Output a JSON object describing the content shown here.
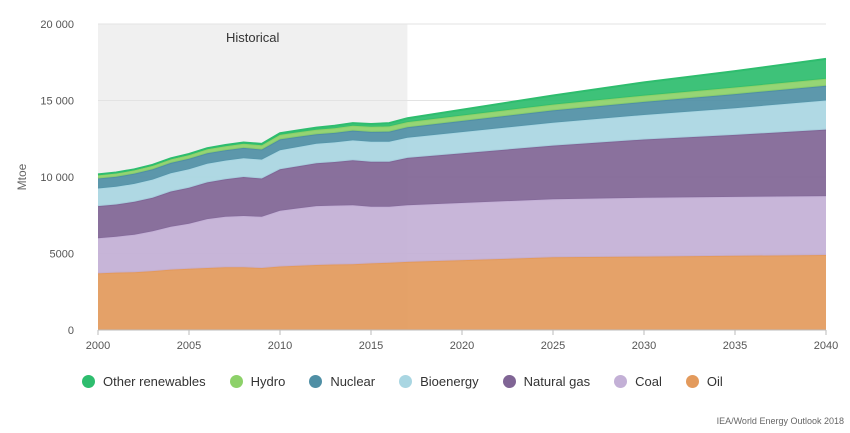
{
  "chart_data": {
    "type": "area",
    "stacked": true,
    "title": "",
    "xlabel": "",
    "ylabel": "Mtoe",
    "xlim": [
      2000,
      2040
    ],
    "ylim": [
      0,
      20000
    ],
    "yticks": [
      0,
      5000,
      10000,
      15000,
      20000
    ],
    "ytick_labels": [
      "0",
      "5000",
      "10 000",
      "15 000",
      "20 000"
    ],
    "xticks": [
      2000,
      2005,
      2010,
      2015,
      2020,
      2025,
      2030,
      2035,
      2040
    ],
    "xtick_labels": [
      "2000",
      "2005",
      "2010",
      "2015",
      "2020",
      "2025",
      "2030",
      "2035",
      "2040"
    ],
    "grid": true,
    "legend_position": "bottom",
    "historical_band": {
      "label": "Historical",
      "from": 2000,
      "to": 2017
    },
    "x": [
      2000,
      2001,
      2002,
      2003,
      2004,
      2005,
      2006,
      2007,
      2008,
      2009,
      2010,
      2011,
      2012,
      2013,
      2014,
      2015,
      2016,
      2017,
      2025,
      2030,
      2035,
      2040
    ],
    "series": [
      {
        "name": "Oil",
        "color": "#e39a5c",
        "values": [
          3700,
          3750,
          3780,
          3850,
          3950,
          4000,
          4050,
          4100,
          4100,
          4050,
          4150,
          4200,
          4250,
          4280,
          4300,
          4350,
          4400,
          4450,
          4750,
          4800,
          4850,
          4900
        ]
      },
      {
        "name": "Coal",
        "color": "#c3b0d6",
        "values": [
          2300,
          2350,
          2450,
          2600,
          2800,
          2950,
          3200,
          3300,
          3350,
          3350,
          3650,
          3750,
          3850,
          3850,
          3850,
          3700,
          3650,
          3700,
          3800,
          3850,
          3850,
          3850
        ]
      },
      {
        "name": "Natural gas",
        "color": "#806595",
        "values": [
          2100,
          2100,
          2150,
          2200,
          2300,
          2350,
          2400,
          2450,
          2550,
          2500,
          2700,
          2750,
          2800,
          2850,
          2950,
          2950,
          2950,
          3100,
          3500,
          3800,
          4050,
          4350
        ]
      },
      {
        "name": "Bioenergy",
        "color": "#a9d6e2",
        "values": [
          1150,
          1160,
          1170,
          1180,
          1190,
          1200,
          1210,
          1220,
          1230,
          1240,
          1250,
          1260,
          1270,
          1280,
          1290,
          1300,
          1310,
          1320,
          1500,
          1600,
          1750,
          1900
        ]
      },
      {
        "name": "Nuclear",
        "color": "#4f8fa5",
        "values": [
          650,
          660,
          670,
          670,
          680,
          690,
          690,
          680,
          670,
          660,
          710,
          670,
          620,
          620,
          640,
          650,
          660,
          680,
          800,
          860,
          920,
          960
        ]
      },
      {
        "name": "Hydro",
        "color": "#8dd169",
        "values": [
          230,
          230,
          230,
          240,
          240,
          250,
          260,
          260,
          270,
          270,
          290,
          290,
          300,
          310,
          320,
          330,
          340,
          340,
          380,
          410,
          430,
          460
        ]
      },
      {
        "name": "Other renewables",
        "color": "#2ebd6e",
        "values": [
          40,
          45,
          50,
          55,
          60,
          65,
          70,
          80,
          85,
          95,
          110,
          125,
          140,
          155,
          170,
          185,
          210,
          250,
          600,
          860,
          1070,
          1300
        ]
      }
    ],
    "source": "IEA/World Energy Outlook 2018"
  }
}
